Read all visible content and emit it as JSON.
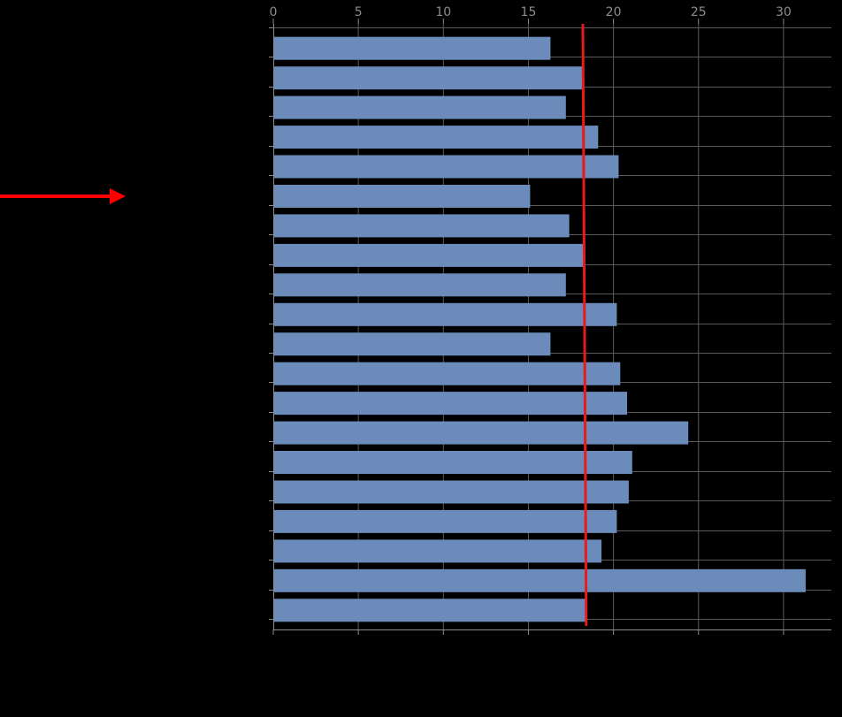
{
  "chart_data": {
    "type": "bar",
    "orientation": "horizontal",
    "title": "",
    "xlabel": "",
    "ylabel": "",
    "xlim": [
      0,
      33
    ],
    "x_ticks": [
      0,
      5,
      10,
      15,
      20,
      25,
      30
    ],
    "x_tick_labels": [
      "0",
      "5",
      "10",
      "15",
      "20",
      "25",
      "30"
    ],
    "x_ticks_position": "top",
    "grid": true,
    "values": [
      16.3,
      18.2,
      17.2,
      19.1,
      20.3,
      15.1,
      17.4,
      18.3,
      17.2,
      20.2,
      16.3,
      20.4,
      20.8,
      24.4,
      21.1,
      20.9,
      20.2,
      19.3,
      31.3,
      18.4
    ],
    "reference_line": {
      "start": 18.2,
      "end": 18.4,
      "color": "#e81b1b"
    },
    "highlight_arrow": {
      "index": 5,
      "color": "#ff0000"
    },
    "colors": {
      "background": "#000000",
      "bar": "#6b8cba",
      "grid": "#5a5a5a",
      "axis": "#8c8c8c"
    }
  }
}
